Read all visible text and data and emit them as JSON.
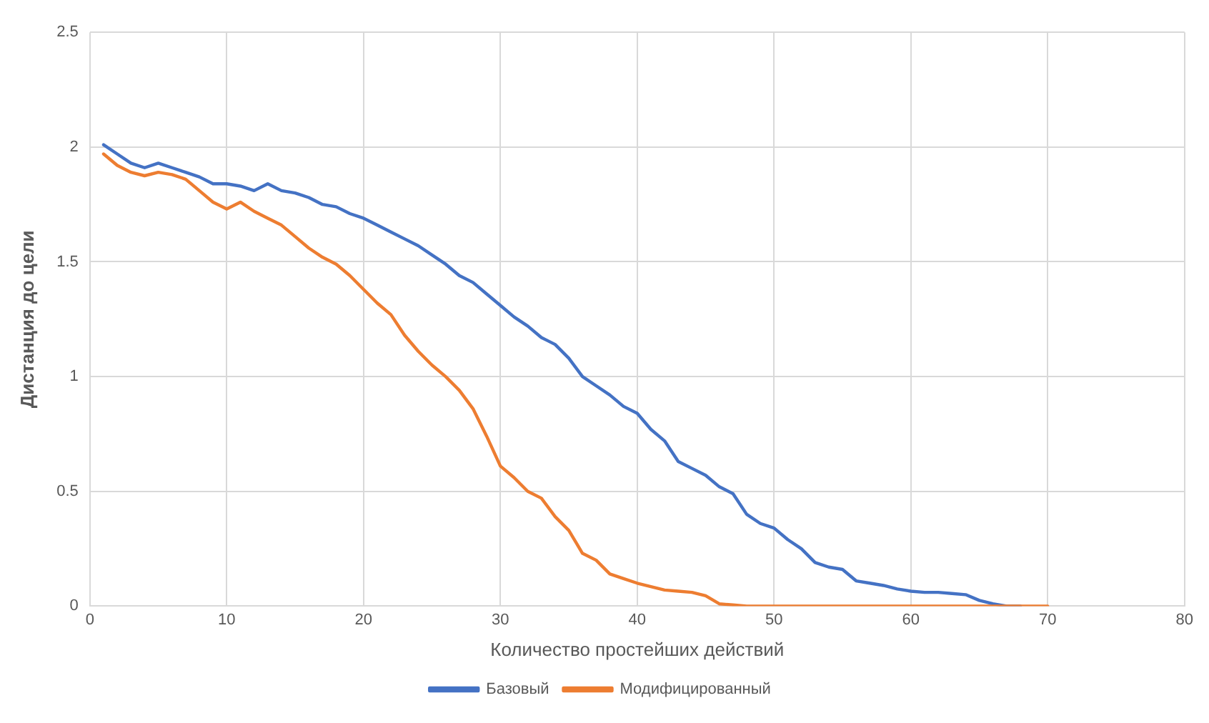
{
  "chart_data": {
    "type": "line",
    "xlabel": "Количество простейших действий",
    "ylabel": "Дистанция до цели",
    "x": [
      1,
      2,
      3,
      4,
      5,
      6,
      7,
      8,
      9,
      10,
      11,
      12,
      13,
      14,
      15,
      16,
      17,
      18,
      19,
      20,
      21,
      22,
      23,
      24,
      25,
      26,
      27,
      28,
      29,
      30,
      31,
      32,
      33,
      34,
      35,
      36,
      37,
      38,
      39,
      40,
      41,
      42,
      43,
      44,
      45,
      46,
      47,
      48,
      49,
      50,
      51,
      52,
      53,
      54,
      55,
      56,
      57,
      58,
      59,
      60,
      61,
      62,
      63,
      64,
      65,
      66,
      67,
      68,
      69,
      70
    ],
    "series": [
      {
        "name": "Базовый",
        "color": "#4472c4",
        "values": [
          2.01,
          1.97,
          1.93,
          1.91,
          1.93,
          1.91,
          1.89,
          1.87,
          1.84,
          1.84,
          1.83,
          1.81,
          1.84,
          1.81,
          1.8,
          1.78,
          1.75,
          1.74,
          1.71,
          1.69,
          1.66,
          1.63,
          1.6,
          1.57,
          1.53,
          1.49,
          1.44,
          1.41,
          1.36,
          1.31,
          1.26,
          1.22,
          1.17,
          1.14,
          1.08,
          1.0,
          0.96,
          0.92,
          0.87,
          0.84,
          0.77,
          0.72,
          0.63,
          0.6,
          0.57,
          0.52,
          0.49,
          0.4,
          0.36,
          0.34,
          0.29,
          0.25,
          0.19,
          0.17,
          0.16,
          0.11,
          0.1,
          0.09,
          0.075,
          0.065,
          0.06,
          0.06,
          0.055,
          0.05,
          0.025,
          0.01,
          0,
          0,
          null,
          null
        ]
      },
      {
        "name": "Модифицированный",
        "color": "#ed7d31",
        "values": [
          1.97,
          1.92,
          1.89,
          1.875,
          1.89,
          1.88,
          1.86,
          1.81,
          1.76,
          1.73,
          1.76,
          1.72,
          1.69,
          1.66,
          1.61,
          1.56,
          1.52,
          1.49,
          1.44,
          1.38,
          1.32,
          1.27,
          1.18,
          1.11,
          1.05,
          1.0,
          0.94,
          0.86,
          0.74,
          0.61,
          0.56,
          0.5,
          0.47,
          0.39,
          0.33,
          0.23,
          0.2,
          0.14,
          0.12,
          0.1,
          0.085,
          0.07,
          0.065,
          0.06,
          0.045,
          0.01,
          0.005,
          0,
          0,
          0,
          0,
          0,
          0,
          0,
          0,
          0,
          0,
          0,
          0,
          0,
          0,
          0,
          0,
          0,
          0,
          0,
          0,
          0,
          0,
          0
        ]
      }
    ],
    "xlim": [
      0,
      80
    ],
    "xticks": [
      0,
      10,
      20,
      30,
      40,
      50,
      60,
      70,
      80
    ],
    "ylim": [
      0,
      2.5
    ],
    "yticks": [
      0,
      0.5,
      1,
      1.5,
      2,
      2.5
    ],
    "grid": true,
    "legend": "bottom",
    "marker": "none",
    "line_style": "solid"
  }
}
